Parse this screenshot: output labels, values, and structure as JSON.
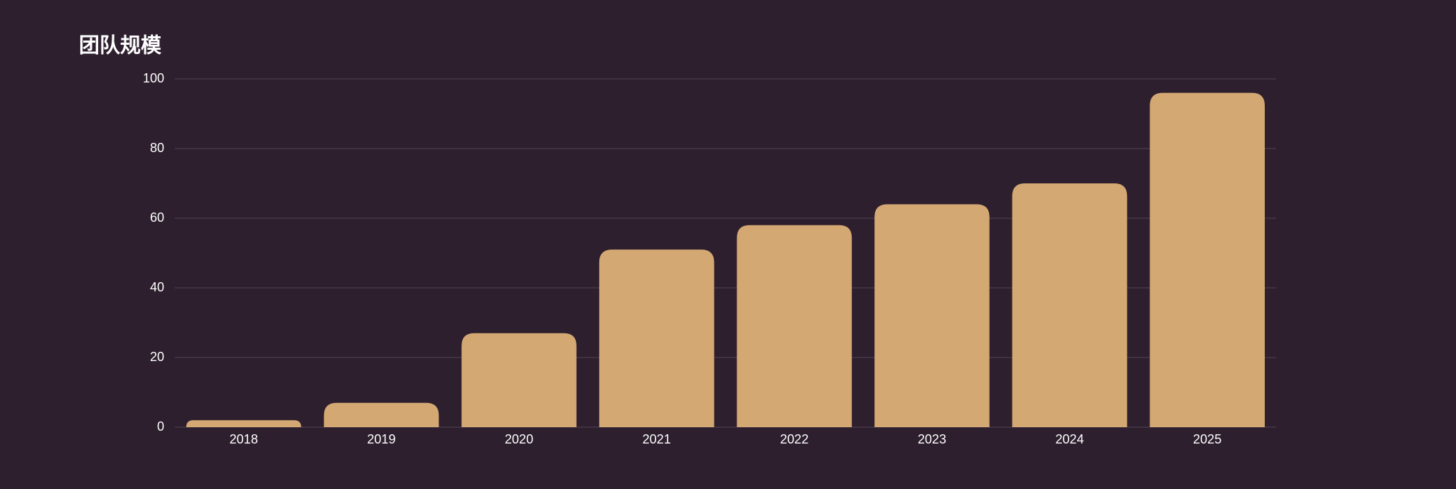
{
  "chart_data": {
    "type": "bar",
    "title": "团队规模",
    "categories": [
      "2018",
      "2019",
      "2020",
      "2021",
      "2022",
      "2023",
      "2024",
      "2025"
    ],
    "values": [
      2,
      7,
      27,
      51,
      58,
      64,
      70,
      96
    ],
    "color": "#d4a873",
    "ylim": [
      0,
      100
    ],
    "yticks": [
      0,
      20,
      40,
      60,
      80,
      100
    ],
    "grid": true
  }
}
